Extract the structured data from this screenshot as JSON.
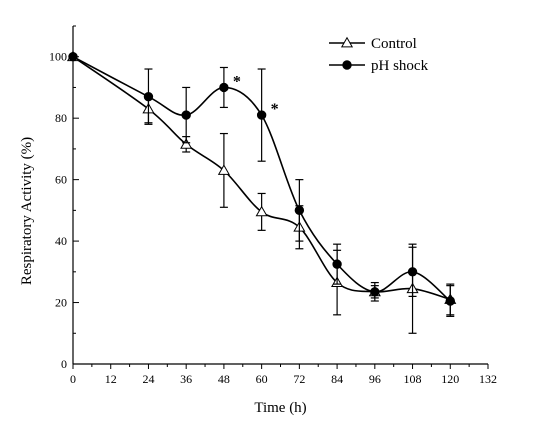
{
  "chart_data": {
    "type": "line",
    "xlabel": "Time (h)",
    "ylabel": "Respiratory Activity (%)",
    "xlim": [
      0,
      132
    ],
    "ylim": [
      0,
      110
    ],
    "xticks": [
      0,
      12,
      24,
      36,
      48,
      60,
      72,
      84,
      96,
      108,
      120,
      132
    ],
    "yticks": [
      0,
      20,
      40,
      60,
      80,
      100
    ],
    "legend_position": "top-right",
    "grid": false,
    "x": [
      0,
      24,
      36,
      48,
      60,
      72,
      84,
      96,
      108,
      120
    ],
    "series": [
      {
        "name": "Control",
        "marker": "open-triangle",
        "color": "#000000",
        "values": [
          100,
          83,
          71.5,
          63,
          49.5,
          44.5,
          26.5,
          23.5,
          24.5,
          21
        ],
        "error": [
          0,
          4.5,
          2.5,
          12,
          6,
          7,
          10.5,
          3,
          14.5,
          5
        ]
      },
      {
        "name": "pH shock",
        "marker": "filled-circle",
        "color": "#000000",
        "values": [
          100,
          87,
          81,
          90,
          81,
          50,
          32.5,
          23.5,
          30,
          20.5
        ],
        "error": [
          0,
          9,
          9,
          6.5,
          15,
          10,
          6.5,
          2,
          8,
          5
        ]
      }
    ],
    "annotations": [
      {
        "text": "*",
        "x": 48,
        "y": 90
      },
      {
        "text": "*",
        "x": 60,
        "y": 81
      }
    ]
  }
}
